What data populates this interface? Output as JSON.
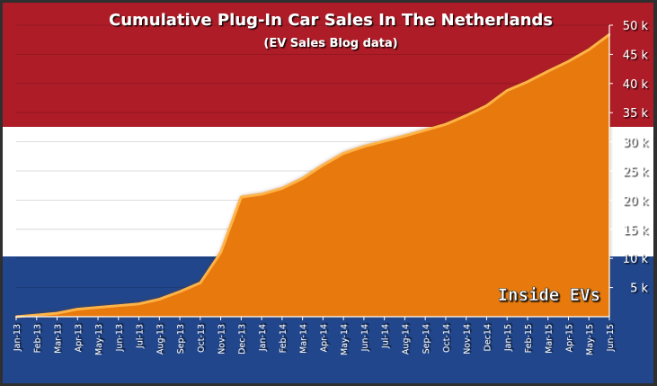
{
  "chart_data": {
    "type": "area",
    "title": "Cumulative Plug-In Car Sales In The Netherlands",
    "subtitle": "(EV Sales Blog data)",
    "watermark": "Inside EVs",
    "xlabel": "",
    "ylabel": "",
    "ylim": [
      0,
      50000
    ],
    "yticks": [
      5000,
      10000,
      15000,
      20000,
      25000,
      30000,
      35000,
      40000,
      45000,
      50000
    ],
    "ytick_labels": [
      "5 k",
      "10 k",
      "15 k",
      "20 k",
      "25 k",
      "30 k",
      "35 k",
      "40 k",
      "45 k",
      "50 k"
    ],
    "categories": [
      "Jan-13",
      "Feb-13",
      "Mar-13",
      "Apr-13",
      "May-13",
      "Jun-13",
      "Jul-13",
      "Aug-13",
      "Sep-13",
      "Oct-13",
      "Nov-13",
      "Dec-13",
      "Jan-14",
      "Feb-14",
      "Mar-14",
      "Apr-14",
      "May-14",
      "Jun-14",
      "Jul-14",
      "Aug-14",
      "Sep-14",
      "Oct-14",
      "Nov-14",
      "Dec14",
      "Jan-15",
      "Feb-15",
      "Mar-15",
      "Apr-15",
      "May-15",
      "Jun-15"
    ],
    "series": [
      {
        "values": [
          0,
          300,
          600,
          1300,
          1600,
          1900,
          2200,
          3000,
          4300,
          5800,
          11000,
          20500,
          21000,
          22000,
          23700,
          26000,
          28000,
          29200,
          30100,
          31000,
          32000,
          33000,
          34500,
          36200,
          38800,
          40300,
          42100,
          43800,
          45800,
          48400
        ]
      }
    ],
    "grid": true,
    "legend": "none",
    "colors": {
      "area": "#e87a0e",
      "area_edge": "#ffb347",
      "flag_red": "#ae1c28",
      "flag_white": "#ffffff",
      "flag_blue": "#21468b",
      "frame": "#2f2f2f",
      "text": "#ffffff"
    }
  }
}
